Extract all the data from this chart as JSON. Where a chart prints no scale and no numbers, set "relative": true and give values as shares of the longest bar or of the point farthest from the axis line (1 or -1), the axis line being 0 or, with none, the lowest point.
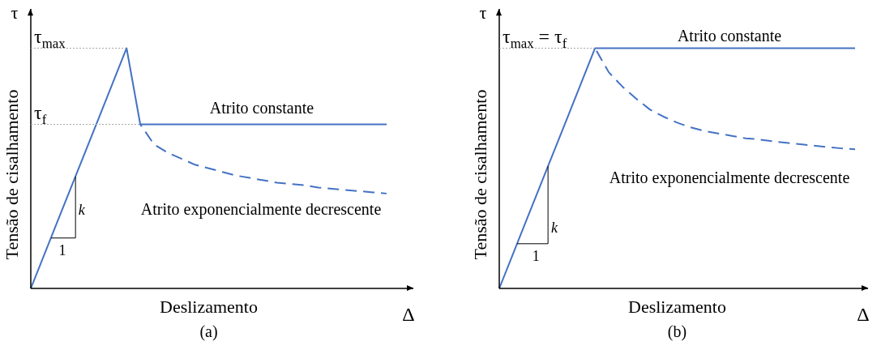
{
  "chart_data": [
    {
      "type": "line",
      "title": "(a)",
      "xlabel": "Deslizamento",
      "ylabel": "Tensão de cisalhamento",
      "relative": true,
      "grid": false,
      "legend": false,
      "marker": "none",
      "categories": [
        null,
        null,
        null,
        null,
        null,
        null,
        null,
        null,
        null,
        null,
        null,
        null,
        null,
        null,
        null,
        null,
        null,
        null,
        null,
        null,
        null,
        null,
        null,
        null,
        null,
        null,
        null
      ],
      "series": [
        {
          "color": "#4472c4",
          "line_style": "solid",
          "values": [
            0,
            0.143,
            0.286,
            0.429,
            0.571,
            0.714,
            0.857,
            1,
            0.683,
            0.683,
            0.683,
            0.683,
            0.683,
            0.683,
            0.683,
            0.683,
            0.683,
            0.683,
            0.683,
            0.683,
            0.683,
            0.683,
            0.683,
            0.683,
            0.683,
            0.683,
            0.683
          ]
        },
        {
          "color": "#4472c4",
          "line_style": "dashed",
          "values": [
            null,
            null,
            null,
            null,
            null,
            null,
            null,
            null,
            0.683,
            0.6,
            0.565,
            0.54,
            0.515,
            0.5,
            0.485,
            0.47,
            0.46,
            0.45,
            0.44,
            0.435,
            0.43,
            0.42,
            0.415,
            0.41,
            0.405,
            0.4,
            0.395
          ]
        }
      ],
      "ref_lines": [
        {
          "axis": "y",
          "value": 1,
          "label": "τ$_{max}$",
          "line_style": "dotted",
          "color": "#a6a6a6"
        },
        {
          "axis": "y",
          "value": 0.683,
          "label": "τ$_{f}$",
          "line_style": "dotted",
          "color": "#a6a6a6"
        }
      ],
      "annotations": [
        "τ",
        "Δ",
        "Atrito constante",
        "Atrito exponencialmente decrescente",
        "k",
        "1"
      ]
    },
    {
      "type": "line",
      "title": "(b)",
      "xlabel": "Deslizamento",
      "ylabel": "Tensão de cisalhamento",
      "relative": true,
      "grid": false,
      "legend": false,
      "marker": "none",
      "categories": [
        null,
        null,
        null,
        null,
        null,
        null,
        null,
        null,
        null,
        null,
        null,
        null,
        null,
        null,
        null,
        null,
        null,
        null,
        null,
        null,
        null,
        null,
        null,
        null,
        null,
        null,
        null
      ],
      "series": [
        {
          "color": "#4472c4",
          "line_style": "solid",
          "values": [
            0,
            0.143,
            0.286,
            0.429,
            0.571,
            0.714,
            0.857,
            1,
            1,
            1,
            1,
            1,
            1,
            1,
            1,
            1,
            1,
            1,
            1,
            1,
            1,
            1,
            1,
            1,
            1,
            1,
            1
          ]
        },
        {
          "color": "#4472c4",
          "line_style": "dashed",
          "values": [
            null,
            null,
            null,
            null,
            null,
            null,
            null,
            1,
            0.9,
            0.84,
            0.79,
            0.745,
            0.715,
            0.69,
            0.67,
            0.655,
            0.645,
            0.635,
            0.625,
            0.62,
            0.612,
            0.606,
            0.6,
            0.594,
            0.588,
            0.583,
            0.579
          ]
        }
      ],
      "ref_lines": [
        {
          "axis": "y",
          "value": 1,
          "label": "τ$_{max}$ = τ$_{f}$",
          "line_style": "dotted",
          "color": "#a6a6a6"
        }
      ],
      "annotations": [
        "τ",
        "Δ",
        "Atrito constante",
        "Atrito exponencialmente decrescente",
        "k",
        "1"
      ]
    }
  ]
}
